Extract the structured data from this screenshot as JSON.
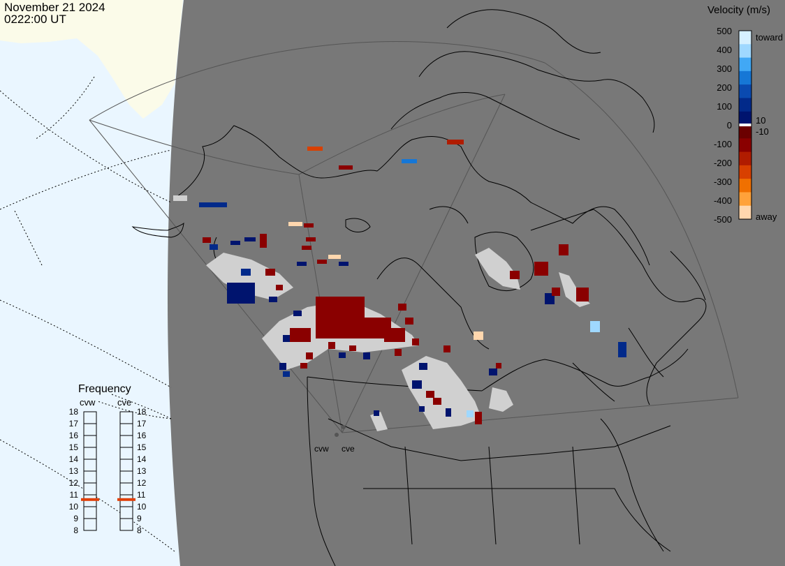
{
  "header": {
    "date": "November 21 2024",
    "time": "0222:00 UT"
  },
  "velocity_scale": {
    "title": "Velocity (m/s)",
    "ticks": [
      "500",
      "400",
      "300",
      "200",
      "100",
      "0",
      "-100",
      "-200",
      "-300",
      "-400",
      "-500"
    ],
    "inner_positive": "10",
    "inner_negative": "-10",
    "toward_label": "toward",
    "away_label": "away",
    "colors": [
      "#d6f0ff",
      "#9fd8ff",
      "#41a8f5",
      "#1677d6",
      "#0a4ab0",
      "#022a8a",
      "#00146e",
      "#6b0000",
      "#8a0000",
      "#b01c00",
      "#d84000",
      "#f07000",
      "#ffa23a",
      "#ffd7ae"
    ]
  },
  "frequency": {
    "title": "Frequency",
    "radars": [
      "cvw",
      "cve"
    ],
    "ticks": [
      "18",
      "17",
      "16",
      "15",
      "14",
      "13",
      "12",
      "11",
      "10",
      "9",
      "8"
    ],
    "selected_mhz": [
      10.6,
      10.6
    ],
    "marker_color": "#e0400a"
  },
  "map": {
    "site_labels": [
      "cvw",
      "cve"
    ],
    "colors": {
      "land": "#787878",
      "ocean_outside": "#eaf6ff",
      "land_outside": "#fbfbe9",
      "ground_scatter": "#d0d0d0",
      "coastline": "#000000"
    }
  }
}
